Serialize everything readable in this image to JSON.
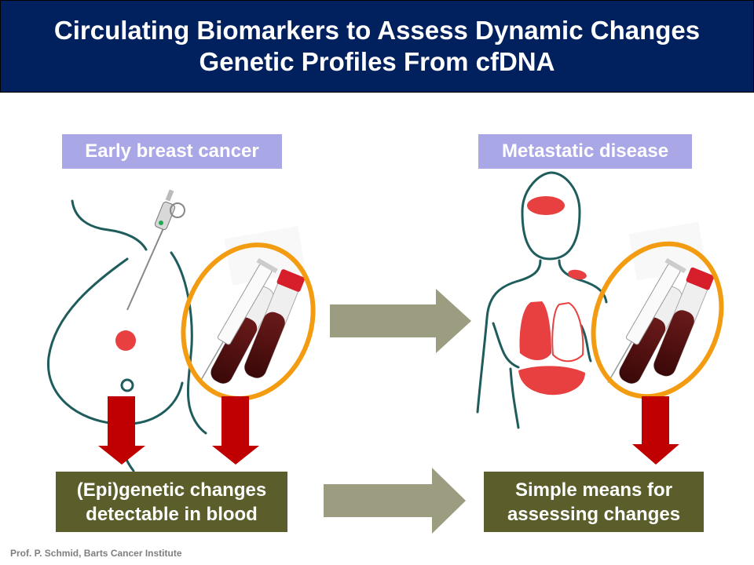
{
  "title": {
    "line1": "Circulating Biomarkers to Assess Dynamic Changes",
    "line2": "Genetic Profiles From cfDNA"
  },
  "left_panel": {
    "label": "Early breast cancer",
    "result_line1": "(Epi)genetic changes",
    "result_line2": "detectable in blood",
    "illustration": [
      "breast-outline",
      "biopsy-needle-icon",
      "tumor-spot",
      "blood-tubes-icon",
      "syringe-icon"
    ]
  },
  "right_panel": {
    "label": "Metastatic disease",
    "result_line1": "Simple means for",
    "result_line2": "assessing changes",
    "illustration": [
      "torso-outline",
      "brain-metastasis",
      "lung-metastasis",
      "liver-metastasis",
      "blood-tubes-icon",
      "syringe-icon"
    ]
  },
  "footer": "Prof. P. Schmid, Barts Cancer Institute",
  "colors": {
    "title_bg": "#00205e",
    "label_bg": "#a9a7e6",
    "result_bg": "#5b5e2a",
    "arrow_olive": "#9b9c80",
    "arrow_red": "#c00000",
    "highlight_ring": "#f39c12",
    "outline": "#1f5c5c",
    "tumor": "#e84040"
  }
}
